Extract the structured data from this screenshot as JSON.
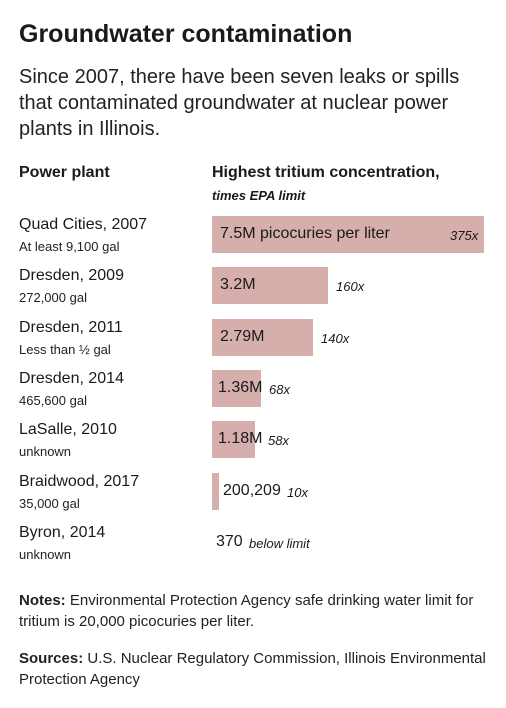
{
  "title": "Groundwater contamination",
  "subtitle": "Since 2007, there have been seven leaks or spills that contaminated groundwater at nuclear power plants in Illinois.",
  "columns": {
    "plant": "Power plant",
    "concentration": "Highest tritium concentration,",
    "concentration_sub": "times EPA limit"
  },
  "notes": {
    "label": "Notes:",
    "text": "Environmental Protection Agency safe drinking water limit for tritium is 20,000 picocuries per liter."
  },
  "sources": {
    "label": "Sources:",
    "text": "U.S. Nuclear Regulatory Commission, Illinois Environmental Protection Agency"
  },
  "colors": {
    "bar": "#d6aeab",
    "text": "#1a1a1a"
  },
  "chart_data": {
    "type": "bar",
    "orientation": "horizontal",
    "unit": "picocuries per liter",
    "categories": [
      "Quad Cities, 2007",
      "Dresden, 2009",
      "Dresden, 2011",
      "Dresden, 2014",
      "LaSalle, 2010",
      "Braidwood, 2017",
      "Byron, 2014"
    ],
    "volumes": [
      "At least 9,100 gal",
      "272,000 gal",
      "Less than ½ gal",
      "465,600 gal",
      "unknown",
      "35,000 gal",
      "unknown"
    ],
    "values": [
      7500000,
      3200000,
      2790000,
      1360000,
      1180000,
      200209,
      370
    ],
    "value_labels": [
      "7.5M picocuries per liter",
      "3.2M",
      "2.79M",
      "1.36M",
      "1.18M",
      "200,209",
      "370"
    ],
    "multiplier_labels": [
      "375x",
      "160x",
      "140x",
      "68x",
      "58x",
      "10x",
      "below limit"
    ],
    "xlim": [
      0,
      7500000
    ],
    "grid": false,
    "legend": "none"
  }
}
